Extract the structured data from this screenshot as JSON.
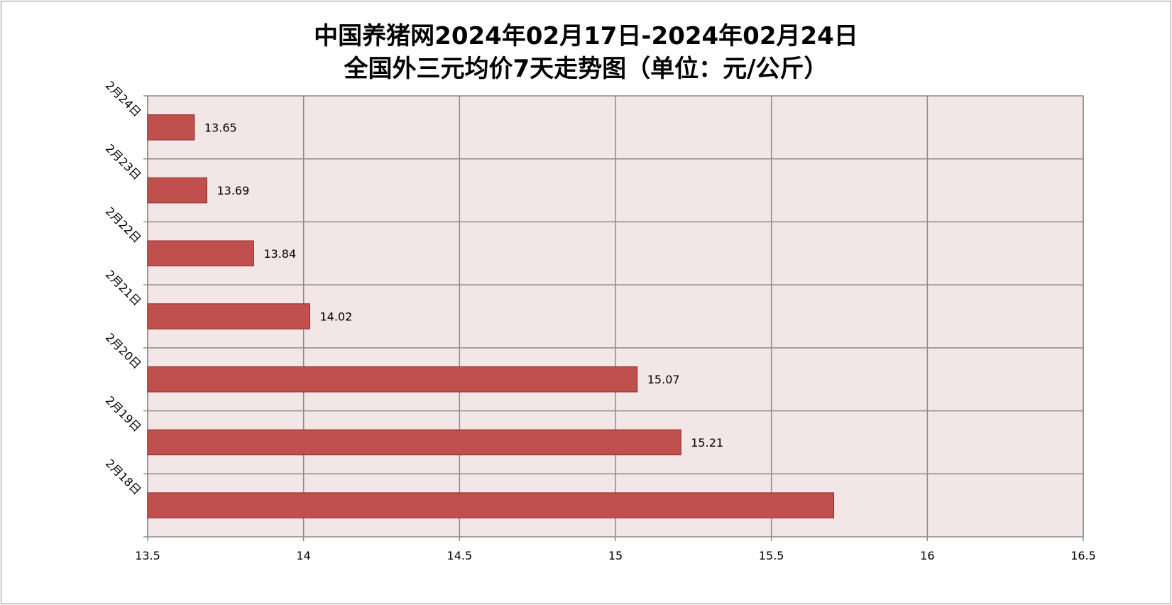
{
  "chart_data": {
    "type": "bar",
    "orientation": "horizontal",
    "title_line1": "中国养猪网2024年02月17日-2024年02月24日",
    "title_line2": "全国外三元均价7天走势图（单位：元/公斤）",
    "categories": [
      "2月24日",
      "2月23日",
      "2月22日",
      "2月21日",
      "2月20日",
      "2月19日",
      "2月18日"
    ],
    "values": [
      13.65,
      13.69,
      13.84,
      14.02,
      15.07,
      15.21,
      15.7
    ],
    "data_labels": [
      "13.65",
      "13.69",
      "13.84",
      "14.02",
      "15.07",
      "15.21",
      ""
    ],
    "x_ticks": [
      "13.5",
      "14",
      "14.5",
      "15",
      "15.5",
      "16",
      "16.5"
    ],
    "xlim": [
      13.5,
      16.5
    ],
    "grid": true,
    "legend": "none",
    "colors": {
      "bar": "#c0504d",
      "bar_border": "#8c2a28",
      "plot_bg": "#f2e6e6",
      "grid": "#8c8c8c"
    }
  }
}
